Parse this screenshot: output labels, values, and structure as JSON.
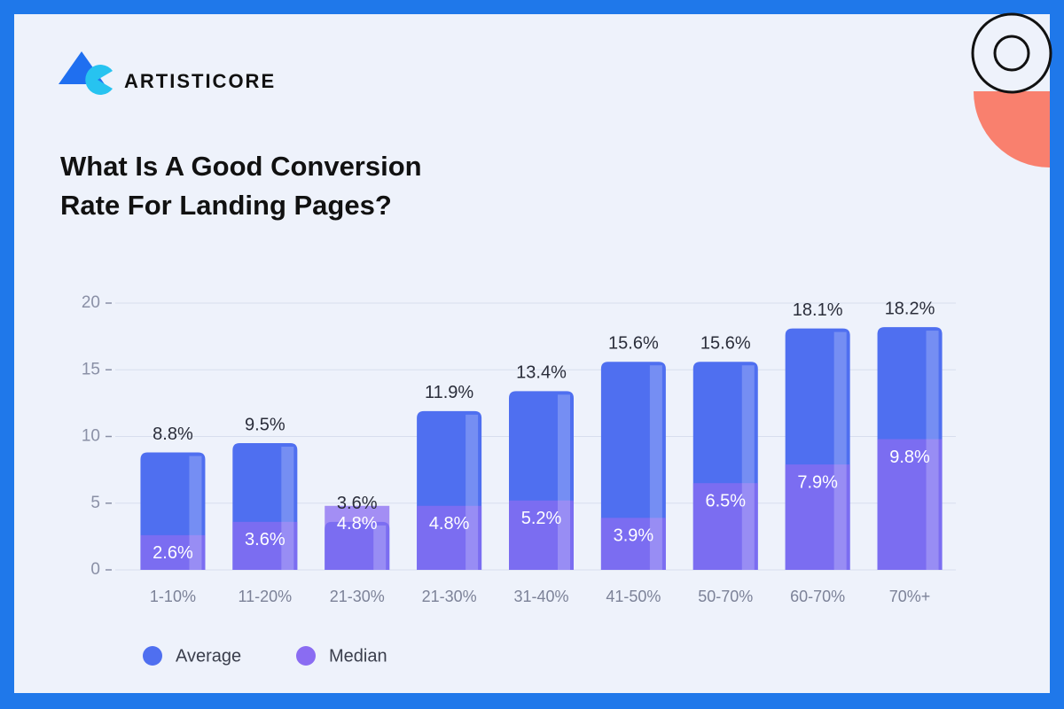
{
  "brand": "ARTISTICORE",
  "chart_data": {
    "type": "bar",
    "title": "What Is A Good Conversion Rate For Landing Pages?",
    "categories": [
      "1-10%",
      "11-20%",
      "21-30%",
      "21-30%",
      "31-40%",
      "41-50%",
      "50-70%",
      "60-70%",
      "70%+"
    ],
    "series": [
      {
        "name": "Average",
        "color": "#4f6ff0",
        "values": [
          8.8,
          9.5,
          3.6,
          11.9,
          13.4,
          15.6,
          15.6,
          18.1,
          18.2
        ],
        "value_labels": [
          "8.8%",
          "9.5%",
          "3.6%",
          "11.9%",
          "13.4%",
          "15.6%",
          "15.6%",
          "18.1%",
          "18.2%"
        ]
      },
      {
        "name": "Median",
        "color": "#8a6cf2",
        "values": [
          2.6,
          3.6,
          4.8,
          4.8,
          5.2,
          3.9,
          6.5,
          7.9,
          9.8
        ],
        "value_labels": [
          "2.6%",
          "3.6%",
          "4.8%",
          "4.8%",
          "5.2%",
          "3.9%",
          "6.5%",
          "7.9%",
          "9.8%"
        ]
      }
    ],
    "ylim": [
      0,
      20
    ],
    "yticks": [
      0,
      5,
      10,
      15,
      20
    ],
    "grid": true,
    "legend": "bottom-left"
  }
}
